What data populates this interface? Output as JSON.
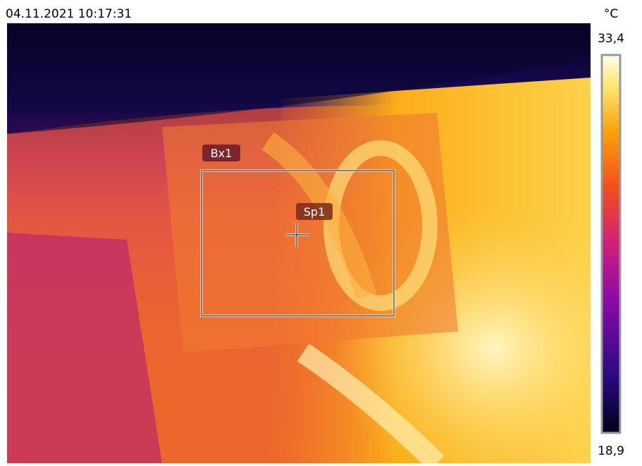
{
  "header": {
    "timestamp": "04.11.2021 10:17:31",
    "unit": "°C"
  },
  "scale": {
    "max": "33,4",
    "min": "18,9"
  },
  "markers": {
    "box": "Bx1",
    "spot": "Sp1"
  }
}
